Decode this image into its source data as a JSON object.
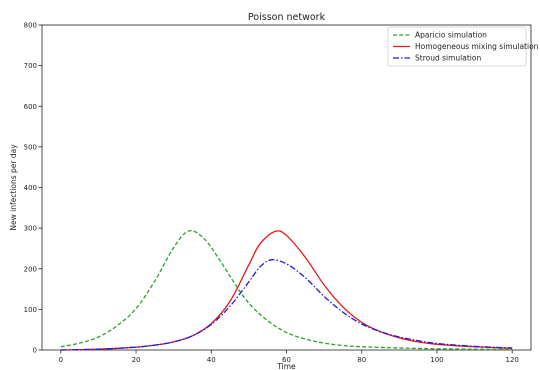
{
  "chart_data": {
    "type": "line",
    "title": "Poisson network",
    "xlabel": "Time",
    "ylabel": "New infections per day",
    "xlim": [
      -5,
      125
    ],
    "ylim": [
      0,
      800
    ],
    "xticks": [
      0,
      20,
      40,
      60,
      80,
      100,
      120
    ],
    "yticks": [
      0,
      100,
      200,
      300,
      400,
      500,
      600,
      700,
      800
    ],
    "grid": false,
    "legend_position": "top-right",
    "series": [
      {
        "name": "Aparicio simulation",
        "color": "#2ca02c",
        "style": "dashed",
        "x": [
          0,
          5,
          10,
          15,
          20,
          25,
          30,
          34,
          38,
          42,
          46,
          50,
          55,
          60,
          65,
          70,
          75,
          80,
          90,
          100,
          110,
          120
        ],
        "y": [
          8,
          17,
          32,
          60,
          102,
          170,
          252,
          293,
          275,
          225,
          167,
          115,
          72,
          43,
          27,
          17,
          11,
          8,
          5,
          3,
          2,
          1
        ]
      },
      {
        "name": "Homogeneous mixing simulation",
        "color": "#e8161b",
        "style": "solid",
        "x": [
          0,
          10,
          20,
          25,
          30,
          35,
          40,
          45,
          50,
          53,
          57,
          60,
          65,
          70,
          75,
          80,
          85,
          90,
          95,
          100,
          110,
          120
        ],
        "y": [
          0,
          2,
          7,
          12,
          20,
          35,
          65,
          120,
          210,
          262,
          292,
          282,
          228,
          160,
          106,
          68,
          45,
          30,
          20,
          14,
          8,
          4
        ]
      },
      {
        "name": "Stroud simulation",
        "color": "#1a1ae6",
        "style": "dashdot",
        "x": [
          0,
          10,
          20,
          25,
          30,
          35,
          40,
          45,
          50,
          53,
          56,
          60,
          65,
          70,
          75,
          80,
          85,
          90,
          95,
          100,
          110,
          120
        ],
        "y": [
          0,
          2,
          7,
          12,
          20,
          35,
          63,
          108,
          168,
          205,
          222,
          212,
          178,
          132,
          93,
          64,
          45,
          32,
          23,
          16,
          9,
          5
        ]
      }
    ]
  }
}
